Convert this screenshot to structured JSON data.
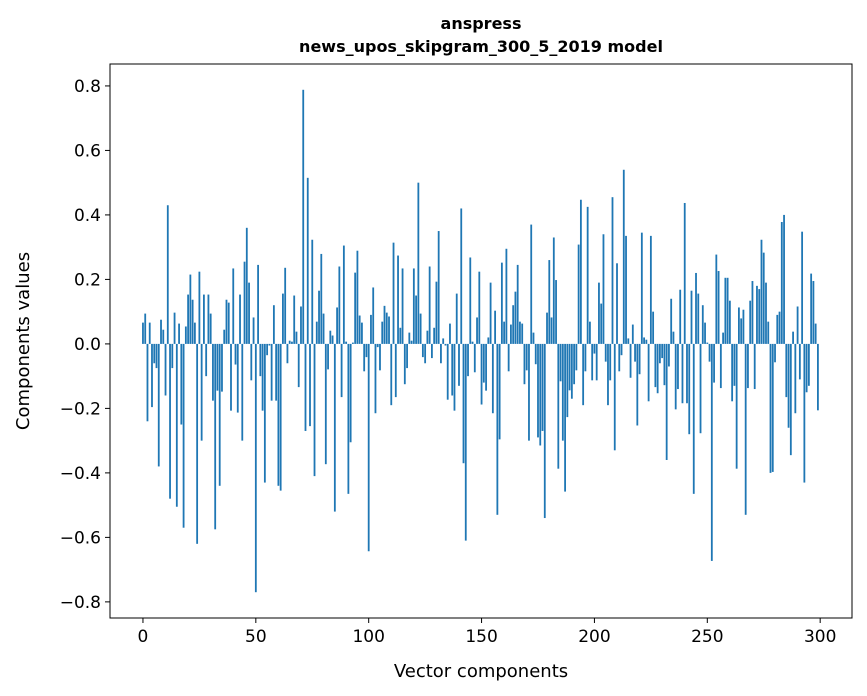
{
  "chart_data": {
    "type": "bar",
    "title_lines": [
      "anspress",
      "news_upos_skipgram_300_5_2019 model"
    ],
    "xlabel": "Vector components",
    "ylabel": "Components values",
    "xlim": [
      -14.6,
      314.1
    ],
    "ylim": [
      -0.85,
      0.868
    ],
    "xticks": [
      0,
      50,
      100,
      150,
      200,
      250,
      300
    ],
    "xtick_labels": [
      "0",
      "50",
      "100",
      "150",
      "200",
      "250",
      "300"
    ],
    "yticks": [
      -0.8,
      -0.6,
      -0.4,
      -0.2,
      0.0,
      0.2,
      0.4,
      0.6,
      0.8
    ],
    "ytick_labels": [
      "−0.8",
      "−0.6",
      "−0.4",
      "−0.2",
      "0.0",
      "0.2",
      "0.4",
      "0.6",
      "0.8"
    ],
    "grid": false,
    "bar_color": "#1f77b4",
    "values": [
      0.066,
      0.094,
      -0.24,
      0.066,
      -0.196,
      -0.06,
      -0.075,
      -0.38,
      0.075,
      0.044,
      -0.16,
      0.43,
      -0.48,
      -0.075,
      0.097,
      -0.505,
      0.063,
      -0.25,
      -0.57,
      0.054,
      0.153,
      0.215,
      0.137,
      0.066,
      -0.62,
      0.224,
      -0.3,
      0.153,
      -0.1,
      0.153,
      0.094,
      -0.176,
      -0.575,
      -0.145,
      -0.44,
      -0.148,
      0.044,
      0.137,
      0.128,
      -0.207,
      0.234,
      -0.064,
      -0.213,
      0.153,
      -0.3,
      0.255,
      0.36,
      0.19,
      -0.113,
      0.082,
      -0.77,
      0.245,
      -0.1,
      -0.207,
      -0.43,
      -0.035,
      -0.005,
      -0.176,
      0.12,
      -0.176,
      -0.44,
      -0.455,
      0.156,
      0.236,
      -0.06,
      0.01,
      0.007,
      0.15,
      0.038,
      -0.134,
      0.116,
      0.788,
      -0.27,
      0.515,
      -0.255,
      0.323,
      -0.41,
      0.069,
      0.165,
      0.279,
      0.094,
      -0.373,
      -0.079,
      0.041,
      0.026,
      -0.52,
      0.113,
      0.24,
      -0.165,
      0.305,
      0.007,
      -0.465,
      -0.305,
      0.004,
      0.221,
      0.289,
      0.088,
      0.066,
      -0.085,
      -0.041,
      -0.643,
      0.09,
      0.175,
      -0.215,
      -0.01,
      -0.082,
      0.069,
      0.118,
      0.097,
      0.085,
      -0.19,
      0.314,
      -0.165,
      0.274,
      0.05,
      0.234,
      -0.125,
      -0.075,
      0.035,
      0.01,
      0.234,
      0.15,
      0.5,
      0.094,
      -0.041,
      -0.06,
      0.041,
      0.24,
      -0.044,
      0.05,
      0.193,
      0.35,
      -0.06,
      0.017,
      -0.005,
      -0.173,
      0.063,
      -0.16,
      -0.207,
      0.156,
      -0.13,
      0.42,
      -0.37,
      -0.61,
      -0.1,
      0.268,
      0.007,
      -0.088,
      0.082,
      0.224,
      -0.188,
      -0.12,
      -0.145,
      0.02,
      0.19,
      -0.215,
      0.103,
      -0.53,
      -0.296,
      0.252,
      0.069,
      0.295,
      -0.085,
      0.06,
      0.12,
      0.162,
      0.245,
      0.069,
      0.063,
      -0.125,
      -0.082,
      -0.3,
      0.37,
      0.035,
      -0.063,
      -0.29,
      -0.315,
      -0.27,
      -0.54,
      0.097,
      0.26,
      0.082,
      0.33,
      0.198,
      -0.387,
      -0.116,
      -0.3,
      -0.458,
      -0.227,
      -0.144,
      -0.17,
      -0.125,
      -0.082,
      0.308,
      0.447,
      -0.19,
      -0.085,
      0.425,
      0.069,
      -0.113,
      -0.03,
      -0.113,
      0.19,
      0.125,
      0.34,
      -0.055,
      -0.19,
      -0.113,
      0.455,
      -0.33,
      0.25,
      -0.085,
      -0.035,
      0.54,
      0.335,
      0.017,
      -0.105,
      0.06,
      -0.055,
      -0.253,
      -0.094,
      0.345,
      0.02,
      0.013,
      -0.178,
      0.335,
      0.1,
      -0.134,
      -0.153,
      -0.06,
      -0.044,
      -0.128,
      -0.36,
      -0.07,
      0.14,
      0.038,
      -0.203,
      -0.14,
      0.168,
      -0.184,
      0.437,
      -0.184,
      -0.28,
      0.165,
      -0.465,
      0.22,
      0.156,
      -0.277,
      0.12,
      0.066,
      0.004,
      -0.055,
      -0.673,
      -0.12,
      0.277,
      0.226,
      -0.137,
      0.035,
      0.205,
      0.205,
      0.134,
      -0.178,
      -0.13,
      -0.387,
      0.113,
      0.079,
      0.106,
      -0.53,
      -0.137,
      0.134,
      0.195,
      -0.14,
      0.18,
      0.17,
      0.323,
      0.283,
      0.19,
      0.069,
      -0.4,
      -0.397,
      -0.057,
      0.09,
      0.1,
      0.378,
      0.4,
      -0.165,
      -0.26,
      -0.345,
      0.038,
      -0.215,
      0.116,
      -0.11,
      0.348,
      -0.43,
      -0.15,
      -0.13,
      0.218,
      0.195,
      0.063,
      -0.206
    ]
  }
}
